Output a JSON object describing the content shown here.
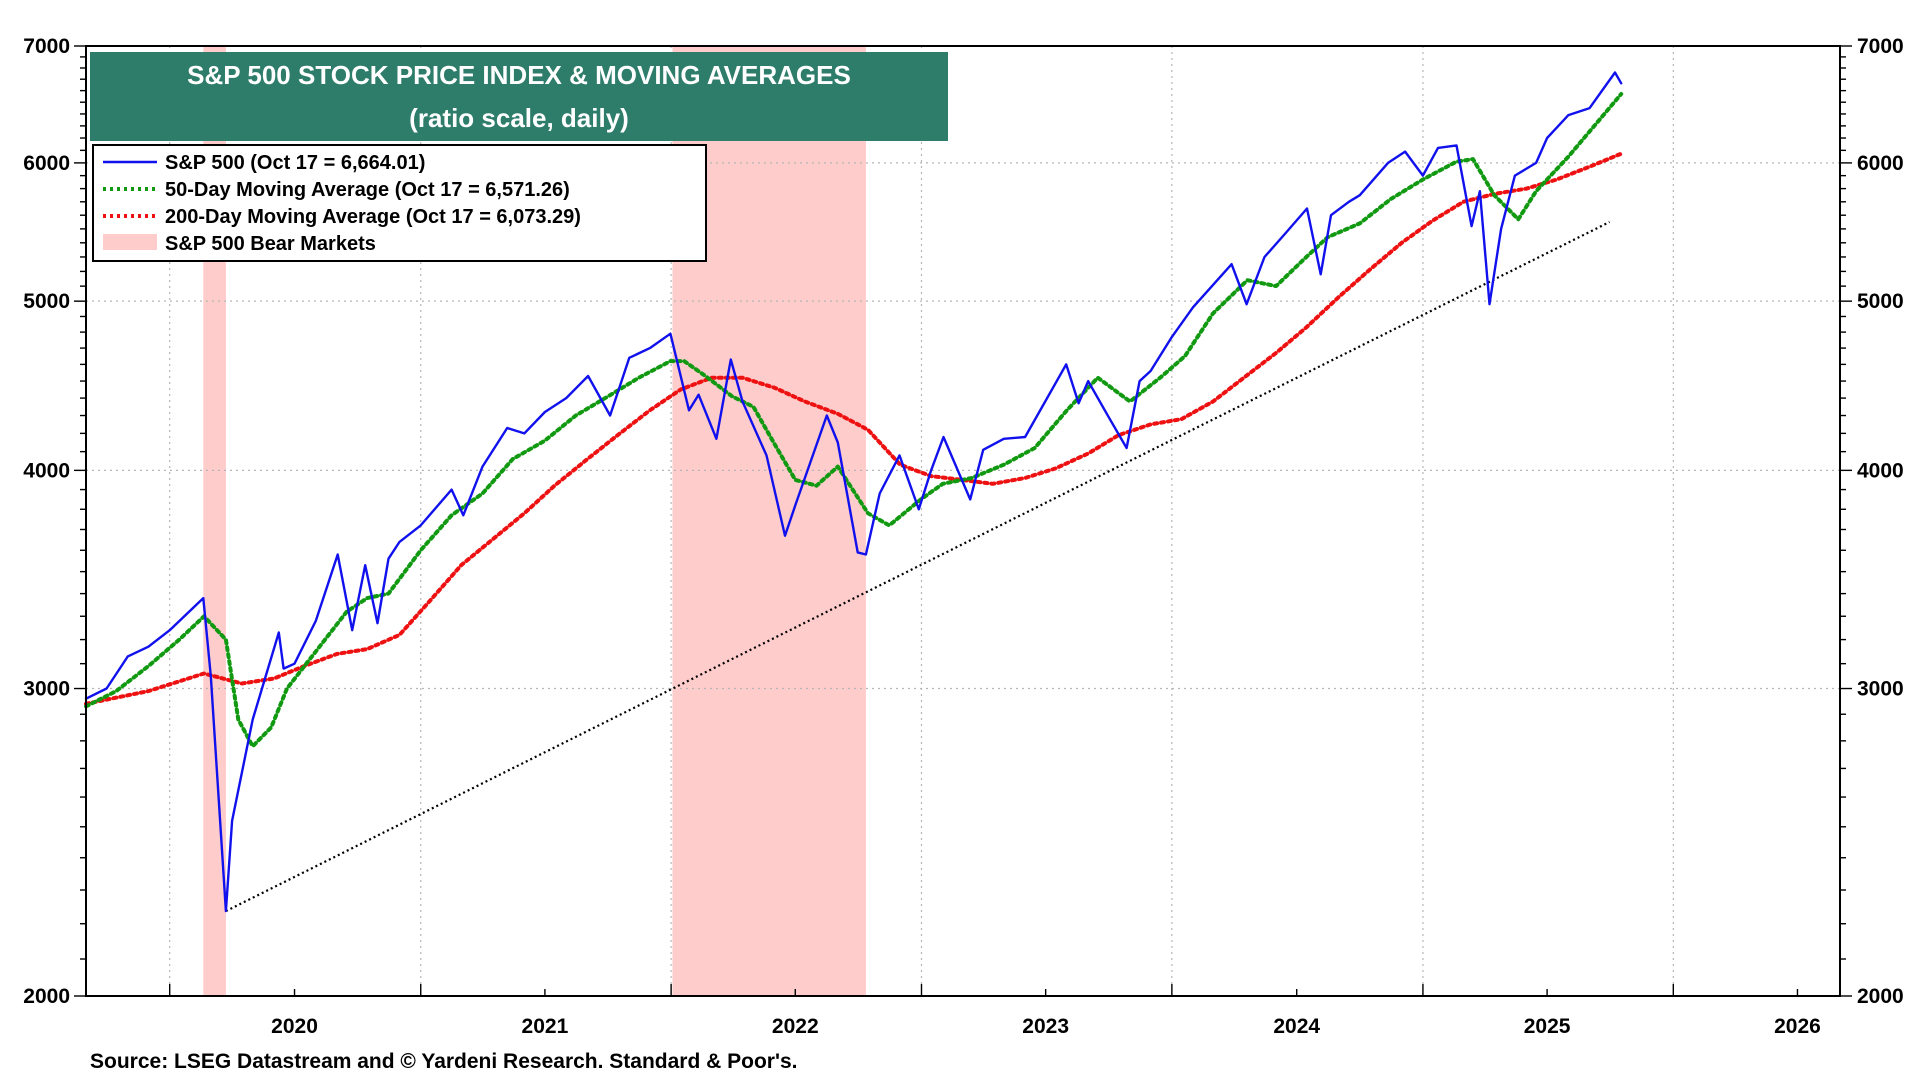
{
  "chart_data": {
    "type": "line",
    "title": "S&P 500 STOCK PRICE INDEX & MOVING AVERAGES",
    "subtitle": "(ratio scale, daily)",
    "source": "Source: LSEG Datastream and © Yardeni Research. Standard & Poor's.",
    "yscale": "log",
    "ylim": [
      2000,
      7000
    ],
    "yticks": [
      "2000",
      "3000",
      "4000",
      "5000",
      "6000",
      "7000"
    ],
    "ytick_values": [
      2000,
      3000,
      4000,
      5000,
      6000,
      7000
    ],
    "xlim": [
      "2019-09-01",
      "2026-09-01"
    ],
    "xticks": [
      "2020",
      "2021",
      "2022",
      "2023",
      "2024",
      "2025",
      "2026"
    ],
    "grid": true,
    "legend_position": "top-left",
    "legend": [
      "S&P 500 (Oct 17 = 6,664.01)",
      "50-Day Moving Average (Oct 17 = 6,571.26)",
      "200-Day Moving Average (Oct 17 = 6,073.29)",
      "S&P 500 Bear Markets"
    ],
    "colors": {
      "sp500": "#1111ee",
      "ma50": "#119911",
      "ma200": "#ee1111",
      "bear": "#ffcccc",
      "trend": "#000000",
      "title_bg": "#2e7d6b"
    },
    "bear_markets": [
      {
        "start": "2020-02-19",
        "end": "2020-03-23"
      },
      {
        "start": "2022-01-03",
        "end": "2022-10-12"
      }
    ],
    "trendline": {
      "x": [
        "2020-03-23",
        "2025-09-30"
      ],
      "y": [
        2237,
        5550
      ]
    },
    "series": [
      {
        "name": "S&P 500 (Oct 17 = 6,664.01)",
        "x": [
          "2019-09-01",
          "2019-10-01",
          "2019-11-01",
          "2019-12-01",
          "2020-01-01",
          "2020-02-19",
          "2020-03-01",
          "2020-03-23",
          "2020-04-01",
          "2020-05-01",
          "2020-06-08",
          "2020-06-15",
          "2020-07-01",
          "2020-08-01",
          "2020-09-02",
          "2020-09-23",
          "2020-10-12",
          "2020-10-30",
          "2020-11-15",
          "2020-12-01",
          "2021-01-01",
          "2021-02-15",
          "2021-03-04",
          "2021-04-01",
          "2021-05-07",
          "2021-06-01",
          "2021-07-01",
          "2021-08-01",
          "2021-09-02",
          "2021-10-04",
          "2021-11-01",
          "2021-12-01",
          "2021-12-31",
          "2022-01-27",
          "2022-02-10",
          "2022-03-08",
          "2022-03-29",
          "2022-04-15",
          "2022-05-20",
          "2022-06-16",
          "2022-07-01",
          "2022-08-16",
          "2022-09-01",
          "2022-09-30",
          "2022-10-12",
          "2022-11-01",
          "2022-11-30",
          "2022-12-28",
          "2023-01-15",
          "2023-02-02",
          "2023-03-13",
          "2023-04-01",
          "2023-05-01",
          "2023-06-01",
          "2023-07-31",
          "2023-08-18",
          "2023-09-01",
          "2023-10-01",
          "2023-10-27",
          "2023-11-15",
          "2023-12-01",
          "2024-01-01",
          "2024-02-01",
          "2024-03-28",
          "2024-04-19",
          "2024-05-15",
          "2024-06-15",
          "2024-07-16",
          "2024-08-05",
          "2024-08-20",
          "2024-09-15",
          "2024-10-01",
          "2024-11-11",
          "2024-12-06",
          "2025-01-01",
          "2025-01-23",
          "2025-02-19",
          "2025-03-13",
          "2025-03-25",
          "2025-04-08",
          "2025-04-25",
          "2025-05-15",
          "2025-06-15",
          "2025-07-01",
          "2025-08-01",
          "2025-09-01",
          "2025-10-08",
          "2025-10-17"
        ],
        "values": [
          2960,
          3000,
          3130,
          3170,
          3240,
          3380,
          3050,
          2237,
          2520,
          2880,
          3230,
          3080,
          3100,
          3280,
          3580,
          3240,
          3530,
          3270,
          3560,
          3640,
          3720,
          3900,
          3770,
          4020,
          4230,
          4200,
          4320,
          4400,
          4530,
          4300,
          4640,
          4700,
          4790,
          4330,
          4420,
          4170,
          4630,
          4380,
          4080,
          3670,
          3820,
          4300,
          4150,
          3590,
          3580,
          3880,
          4080,
          3800,
          4000,
          4180,
          3850,
          4110,
          4170,
          4180,
          4600,
          4370,
          4500,
          4290,
          4120,
          4500,
          4560,
          4770,
          4960,
          5250,
          4980,
          5300,
          5470,
          5650,
          5180,
          5600,
          5700,
          5750,
          6000,
          6090,
          5900,
          6120,
          6140,
          5520,
          5780,
          4980,
          5500,
          5900,
          6000,
          6200,
          6390,
          6450,
          6760,
          6664
        ]
      },
      {
        "name": "50-Day Moving Average (Oct 17 = 6,571.26)",
        "x": [
          "2019-09-01",
          "2019-10-15",
          "2019-12-01",
          "2020-01-15",
          "2020-02-20",
          "2020-03-23",
          "2020-04-10",
          "2020-05-01",
          "2020-05-28",
          "2020-06-20",
          "2020-08-01",
          "2020-09-15",
          "2020-10-15",
          "2020-11-15",
          "2021-01-01",
          "2021-02-15",
          "2021-04-01",
          "2021-05-15",
          "2021-07-01",
          "2021-08-15",
          "2021-10-01",
          "2021-11-15",
          "2021-12-31",
          "2022-01-20",
          "2022-02-20",
          "2022-03-31",
          "2022-05-01",
          "2022-06-01",
          "2022-07-01",
          "2022-08-01",
          "2022-09-01",
          "2022-10-15",
          "2022-11-15",
          "2022-12-31",
          "2023-02-01",
          "2023-03-15",
          "2023-05-01",
          "2023-06-15",
          "2023-08-01",
          "2023-09-15",
          "2023-11-01",
          "2023-12-15",
          "2024-01-20",
          "2024-03-01",
          "2024-04-20",
          "2024-06-01",
          "2024-07-15",
          "2024-08-15",
          "2024-10-01",
          "2024-11-15",
          "2025-01-01",
          "2025-02-19",
          "2025-03-15",
          "2025-04-15",
          "2025-05-20",
          "2025-06-15",
          "2025-08-01",
          "2025-10-17"
        ],
        "values": [
          2930,
          2990,
          3090,
          3200,
          3300,
          3200,
          2880,
          2780,
          2850,
          3000,
          3150,
          3320,
          3380,
          3400,
          3600,
          3770,
          3880,
          4060,
          4160,
          4300,
          4410,
          4520,
          4620,
          4620,
          4530,
          4410,
          4350,
          4140,
          3950,
          3920,
          4020,
          3780,
          3720,
          3850,
          3930,
          3960,
          4030,
          4120,
          4330,
          4520,
          4380,
          4520,
          4650,
          4920,
          5140,
          5100,
          5300,
          5440,
          5540,
          5720,
          5870,
          6010,
          6030,
          5750,
          5570,
          5780,
          6050,
          6571
        ]
      },
      {
        "name": "200-Day Moving Average (Oct 17 = 6,073.29)",
        "x": [
          "2019-09-01",
          "2019-12-01",
          "2020-02-20",
          "2020-04-15",
          "2020-06-01",
          "2020-07-15",
          "2020-09-01",
          "2020-10-15",
          "2020-12-01",
          "2021-01-15",
          "2021-03-01",
          "2021-04-15",
          "2021-06-01",
          "2021-07-15",
          "2021-09-01",
          "2021-10-15",
          "2021-12-01",
          "2022-01-15",
          "2022-03-01",
          "2022-04-15",
          "2022-06-01",
          "2022-07-15",
          "2022-09-01",
          "2022-10-15",
          "2022-12-01",
          "2023-01-15",
          "2023-03-01",
          "2023-04-15",
          "2023-06-01",
          "2023-07-15",
          "2023-09-01",
          "2023-10-15",
          "2023-12-01",
          "2024-01-15",
          "2024-03-01",
          "2024-04-15",
          "2024-06-01",
          "2024-07-15",
          "2024-09-01",
          "2024-10-15",
          "2024-12-01",
          "2025-01-15",
          "2025-03-01",
          "2025-04-15",
          "2025-06-01",
          "2025-07-15",
          "2025-09-01",
          "2025-10-17"
        ],
        "values": [
          2940,
          2990,
          3060,
          3020,
          3040,
          3090,
          3140,
          3160,
          3220,
          3370,
          3530,
          3650,
          3780,
          3920,
          4060,
          4190,
          4330,
          4450,
          4520,
          4520,
          4460,
          4380,
          4310,
          4220,
          4030,
          3970,
          3950,
          3930,
          3960,
          4010,
          4090,
          4190,
          4250,
          4280,
          4380,
          4520,
          4670,
          4830,
          5030,
          5210,
          5400,
          5560,
          5700,
          5760,
          5800,
          5870,
          5970,
          6073
        ]
      }
    ]
  }
}
